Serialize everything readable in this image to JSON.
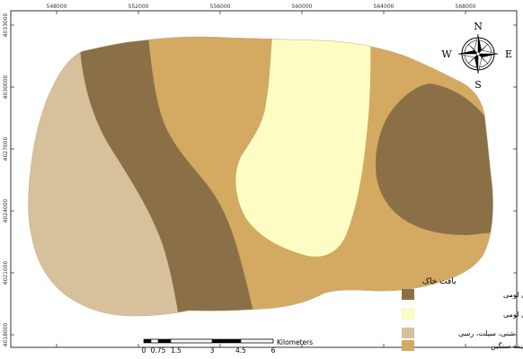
{
  "map": {
    "x_ticks": [
      "548000",
      "552000",
      "556000",
      "560000",
      "564000",
      "568000"
    ],
    "y_ticks": [
      "4033000",
      "4030000",
      "4027000",
      "4024000",
      "4021000",
      "4018000"
    ],
    "compass": {
      "n": "N",
      "s": "S",
      "e": "E",
      "w": "W"
    },
    "legend": {
      "title": "بافت خاک",
      "items": [
        {
          "label": "سیلتی لومی تا سیلتی رسی لومی",
          "color": "#8b7047"
        },
        {
          "label": "شنی لومی تا شنی سیلتی لومی",
          "color": "#fdfdc3"
        },
        {
          "label": "شنی، سیلت، رسی",
          "color": "#d6c19c"
        },
        {
          "label": "متوسط تا نیمه سنگین",
          "color": "#d4a962"
        }
      ]
    },
    "scale_bar": {
      "labels": [
        "0",
        "0.75",
        "1.5",
        "3",
        "4.5",
        "6"
      ],
      "unit": "Kilometers"
    },
    "colors": {
      "frame": "#000000",
      "background": "#ffffff"
    }
  }
}
